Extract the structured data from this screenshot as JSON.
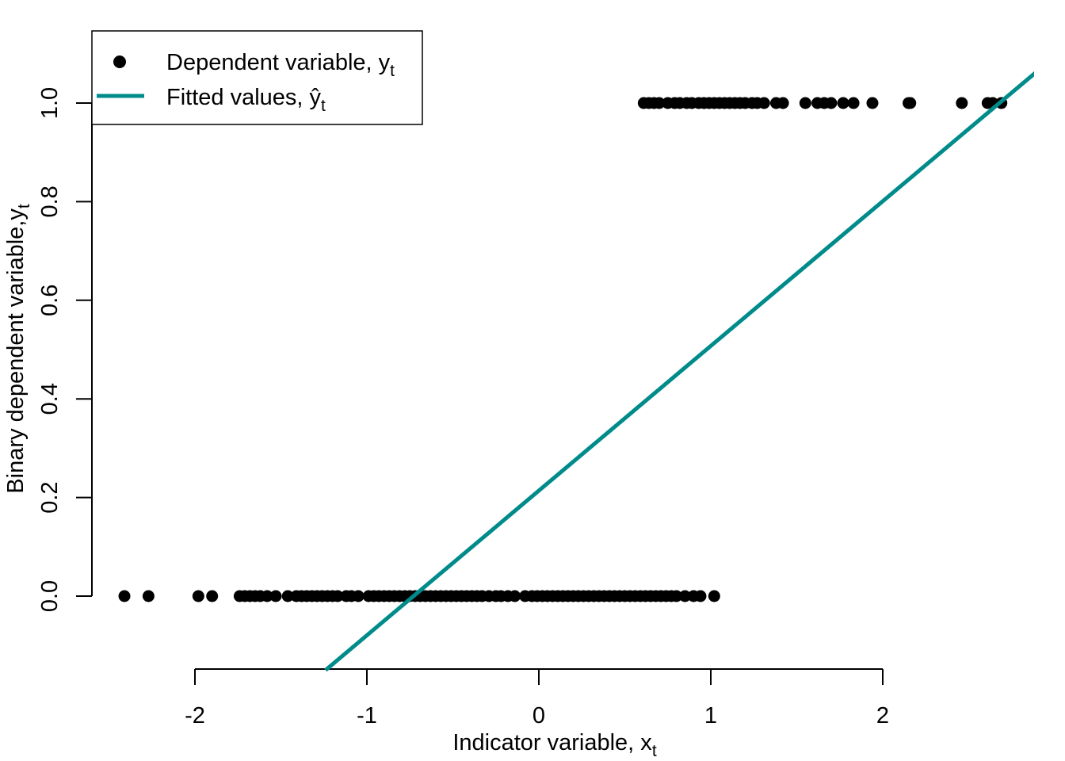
{
  "chart_data": {
    "type": "scatter",
    "xlabel": "Indicator variable, x",
    "xlabel_subscript": "t",
    "ylabel": "Binary dependent variable,y",
    "ylabel_subscript": "t",
    "xlim": [
      -2.6,
      2.9
    ],
    "ylim": [
      -0.15,
      1.07
    ],
    "x_ticks": [
      -2,
      -1,
      0,
      1,
      2
    ],
    "x_tick_labels": [
      "-2",
      "-1",
      "0",
      "1",
      "2"
    ],
    "y_ticks": [
      0.0,
      0.2,
      0.4,
      0.6,
      0.8,
      1.0
    ],
    "y_tick_labels": [
      "0.0",
      "0.2",
      "0.4",
      "0.6",
      "0.8",
      "1.0"
    ],
    "grid": false,
    "legend": {
      "placement": "top-left",
      "entries": [
        {
          "label": "Dependent variable, y",
          "subscript": "t",
          "marker": "point"
        },
        {
          "label": "Fitted values, ",
          "math": "ŷ",
          "subscript": "t",
          "marker": "line"
        }
      ]
    },
    "colors": {
      "points": "#000000",
      "fitted_line": "#008B8B",
      "background": "#ffffff"
    },
    "series": [
      {
        "name": "Dependent variable, y_t",
        "kind": "points",
        "y": 0,
        "x": [
          -2.41,
          -2.27,
          -1.98,
          -1.9,
          -1.74,
          -1.71,
          -1.68,
          -1.65,
          -1.62,
          -1.58,
          -1.53,
          -1.46,
          -1.41,
          -1.38,
          -1.35,
          -1.32,
          -1.29,
          -1.26,
          -1.23,
          -1.2,
          -1.17,
          -1.12,
          -1.09,
          -1.05,
          -0.99,
          -0.96,
          -0.93,
          -0.9,
          -0.87,
          -0.84,
          -0.81,
          -0.78,
          -0.75,
          -0.72,
          -0.69,
          -0.66,
          -0.63,
          -0.6,
          -0.57,
          -0.54,
          -0.51,
          -0.48,
          -0.45,
          -0.42,
          -0.39,
          -0.36,
          -0.33,
          -0.29,
          -0.25,
          -0.22,
          -0.18,
          -0.14,
          -0.08,
          -0.04,
          -0.01,
          0.02,
          0.05,
          0.08,
          0.11,
          0.14,
          0.17,
          0.2,
          0.23,
          0.26,
          0.29,
          0.32,
          0.35,
          0.38,
          0.41,
          0.44,
          0.47,
          0.5,
          0.53,
          0.56,
          0.59,
          0.62,
          0.65,
          0.68,
          0.71,
          0.74,
          0.77,
          0.8,
          0.85,
          0.9,
          0.94,
          1.02
        ]
      },
      {
        "name": "Dependent variable, y_t",
        "kind": "points",
        "y": 1,
        "x": [
          0.61,
          0.64,
          0.67,
          0.7,
          0.75,
          0.79,
          0.82,
          0.86,
          0.89,
          0.93,
          0.96,
          0.99,
          1.02,
          1.05,
          1.08,
          1.11,
          1.14,
          1.17,
          1.2,
          1.24,
          1.27,
          1.31,
          1.38,
          1.42,
          1.55,
          1.62,
          1.66,
          1.7,
          1.77,
          1.83,
          1.94,
          2.15,
          2.16,
          2.46,
          2.61,
          2.64,
          2.69
        ]
      },
      {
        "name": "Fitted values, ŷ_t",
        "kind": "line",
        "x": [
          -1.24,
          2.9
        ],
        "y": [
          -0.15,
          1.065
        ]
      }
    ]
  }
}
